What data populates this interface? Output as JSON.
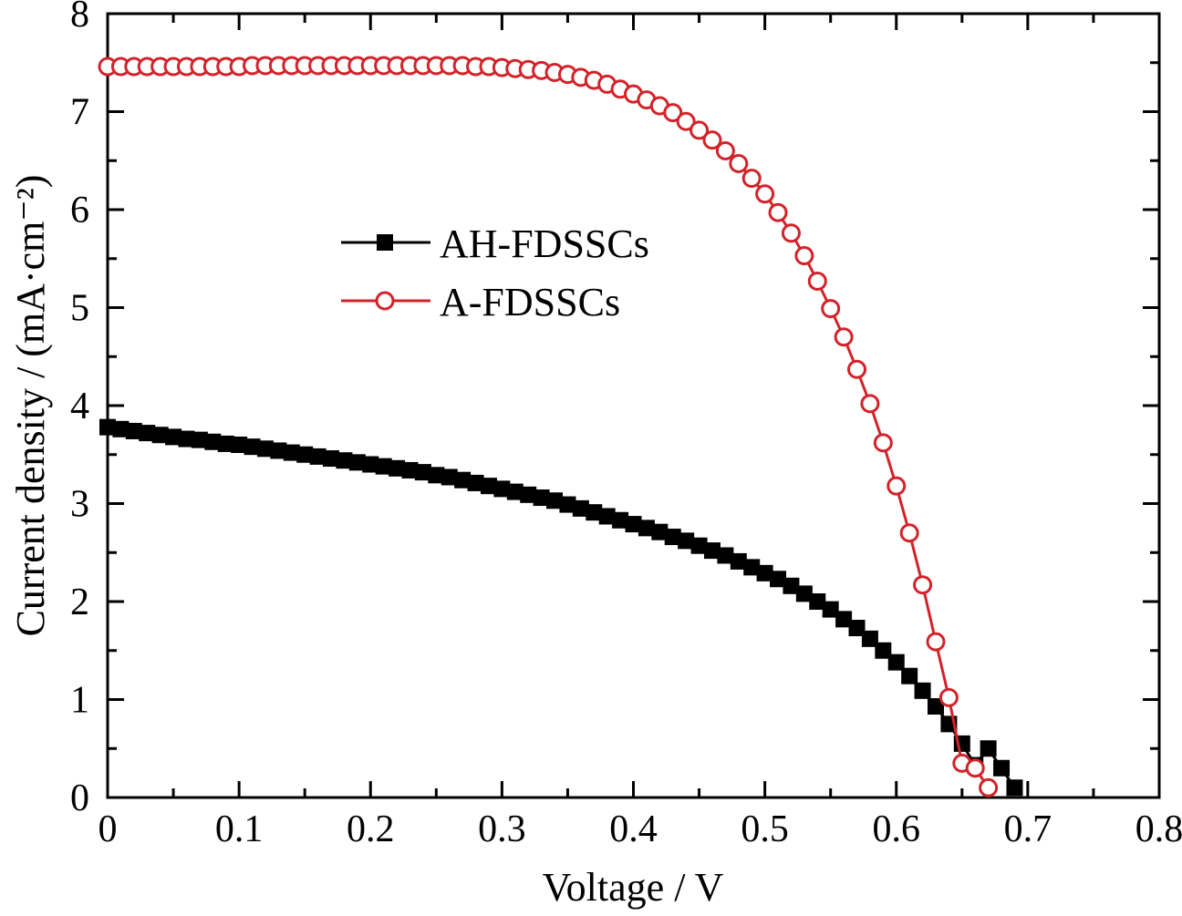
{
  "chart_data": {
    "type": "line",
    "xlabel": "Voltage / V",
    "ylabel": "Current density / (mA·cm⁻²)",
    "xlim": [
      0,
      0.8
    ],
    "ylim": [
      0,
      8
    ],
    "xticks": [
      "0",
      "0.1",
      "0.2",
      "0.3",
      "0.4",
      "0.5",
      "0.6",
      "0.7",
      "0.8"
    ],
    "yticks": [
      "0",
      "1",
      "2",
      "3",
      "4",
      "5",
      "6",
      "7",
      "8"
    ],
    "legend_position": "center-left",
    "grid": false,
    "series": [
      {
        "name": "AH-FDSSCs",
        "color": "#000000",
        "marker": "filled-square",
        "x": [
          0.0,
          0.01,
          0.02,
          0.03,
          0.04,
          0.05,
          0.06,
          0.07,
          0.08,
          0.09,
          0.1,
          0.11,
          0.12,
          0.13,
          0.14,
          0.15,
          0.16,
          0.17,
          0.18,
          0.19,
          0.2,
          0.21,
          0.22,
          0.23,
          0.24,
          0.25,
          0.26,
          0.27,
          0.28,
          0.29,
          0.3,
          0.31,
          0.32,
          0.33,
          0.34,
          0.35,
          0.36,
          0.37,
          0.38,
          0.39,
          0.4,
          0.41,
          0.42,
          0.43,
          0.44,
          0.45,
          0.46,
          0.47,
          0.48,
          0.49,
          0.5,
          0.51,
          0.52,
          0.53,
          0.54,
          0.55,
          0.56,
          0.57,
          0.58,
          0.59,
          0.6,
          0.61,
          0.62,
          0.63,
          0.64,
          0.65,
          0.66,
          0.67,
          0.68,
          0.69
        ],
        "y": [
          3.78,
          3.76,
          3.74,
          3.72,
          3.7,
          3.68,
          3.66,
          3.65,
          3.63,
          3.61,
          3.6,
          3.58,
          3.56,
          3.54,
          3.52,
          3.5,
          3.48,
          3.46,
          3.44,
          3.42,
          3.4,
          3.38,
          3.36,
          3.34,
          3.32,
          3.29,
          3.27,
          3.24,
          3.21,
          3.18,
          3.15,
          3.12,
          3.09,
          3.06,
          3.03,
          2.99,
          2.95,
          2.91,
          2.87,
          2.83,
          2.79,
          2.75,
          2.71,
          2.66,
          2.62,
          2.57,
          2.52,
          2.47,
          2.41,
          2.35,
          2.29,
          2.23,
          2.16,
          2.08,
          2.0,
          1.92,
          1.82,
          1.73,
          1.62,
          1.5,
          1.38,
          1.24,
          1.09,
          0.93,
          0.75,
          0.55,
          0.33,
          0.5,
          0.3,
          0.1
        ]
      },
      {
        "name": "A-FDSSCs",
        "color": "#d2232a",
        "marker": "open-circle",
        "x": [
          0.0,
          0.01,
          0.02,
          0.03,
          0.04,
          0.05,
          0.06,
          0.07,
          0.08,
          0.09,
          0.1,
          0.11,
          0.12,
          0.13,
          0.14,
          0.15,
          0.16,
          0.17,
          0.18,
          0.19,
          0.2,
          0.21,
          0.22,
          0.23,
          0.24,
          0.25,
          0.26,
          0.27,
          0.28,
          0.29,
          0.3,
          0.31,
          0.32,
          0.33,
          0.34,
          0.35,
          0.36,
          0.37,
          0.38,
          0.39,
          0.4,
          0.41,
          0.42,
          0.43,
          0.44,
          0.45,
          0.46,
          0.47,
          0.48,
          0.49,
          0.5,
          0.51,
          0.52,
          0.53,
          0.54,
          0.55,
          0.56,
          0.57,
          0.58,
          0.59,
          0.6,
          0.61,
          0.62,
          0.63,
          0.64,
          0.65,
          0.66,
          0.67
        ],
        "y": [
          7.46,
          7.46,
          7.46,
          7.46,
          7.46,
          7.46,
          7.46,
          7.46,
          7.46,
          7.46,
          7.46,
          7.47,
          7.47,
          7.47,
          7.47,
          7.47,
          7.47,
          7.47,
          7.47,
          7.47,
          7.47,
          7.47,
          7.47,
          7.47,
          7.47,
          7.47,
          7.47,
          7.47,
          7.46,
          7.46,
          7.45,
          7.44,
          7.43,
          7.42,
          7.4,
          7.38,
          7.35,
          7.32,
          7.28,
          7.23,
          7.18,
          7.12,
          7.06,
          6.99,
          6.9,
          6.81,
          6.71,
          6.6,
          6.47,
          6.32,
          6.16,
          5.97,
          5.76,
          5.53,
          5.27,
          4.99,
          4.7,
          4.37,
          4.02,
          3.62,
          3.18,
          2.7,
          2.17,
          1.59,
          1.02,
          0.35,
          0.3,
          0.1
        ]
      }
    ]
  }
}
